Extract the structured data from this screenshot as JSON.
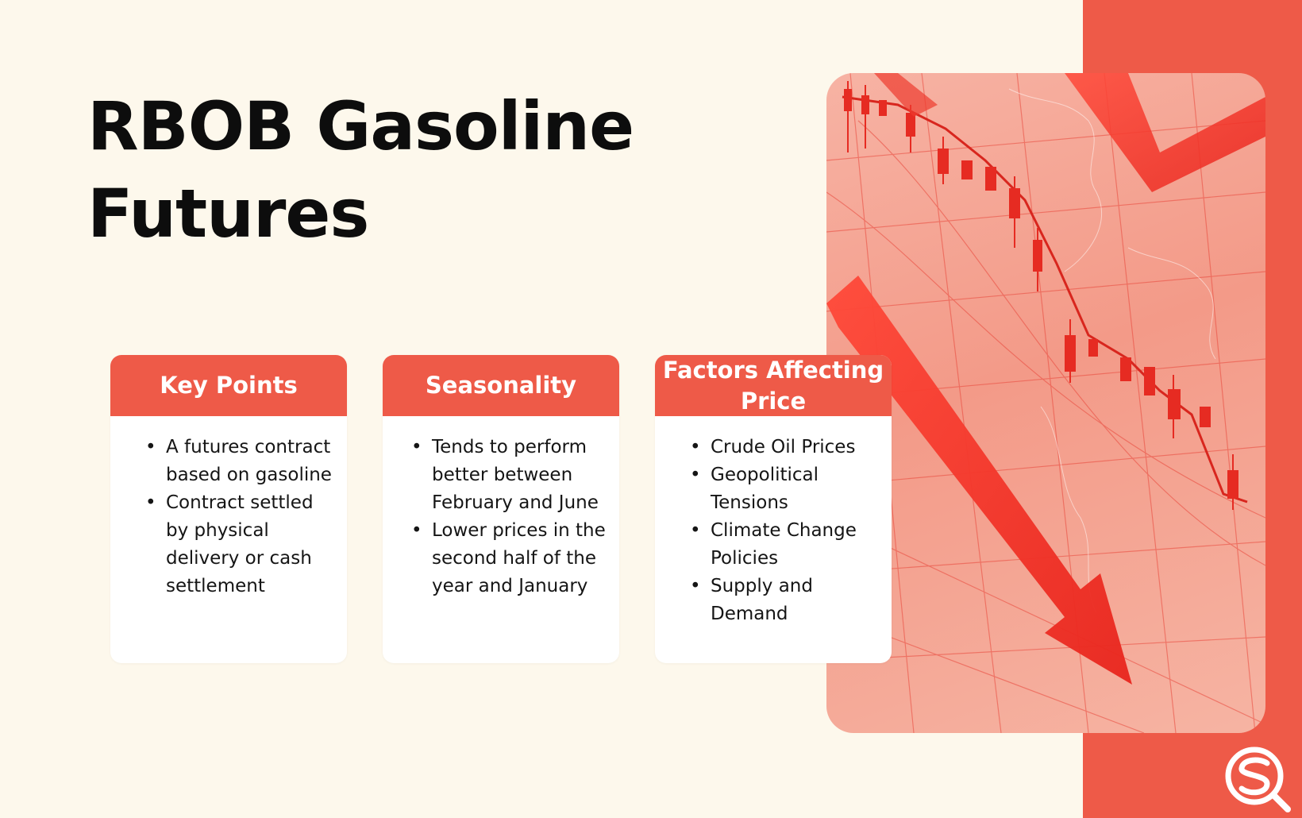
{
  "title": {
    "line1": "RBOB Gasoline",
    "line2": "Futures"
  },
  "cards": [
    {
      "header": "Key Points",
      "items": [
        "A futures contract based on gasoline",
        "Contract settled by physical delivery or cash settlement"
      ]
    },
    {
      "header": "Seasonality",
      "items": [
        "Tends to perform better between February and June",
        "Lower prices in the second half of the year and January"
      ]
    },
    {
      "header": "Factors Affecting Price",
      "items": [
        "Crude Oil Prices",
        "Geopolitical Tensions",
        "Climate Change Policies",
        "Supply and Demand"
      ]
    }
  ],
  "image": {
    "subject": "red-downtrend-arrow-candlestick-image"
  },
  "logo": {
    "icon": "sq-logo-icon"
  },
  "colors": {
    "accent": "#ee5a48",
    "background": "#fdf8ec",
    "card": "#ffffff",
    "text": "#0d0d0d"
  }
}
